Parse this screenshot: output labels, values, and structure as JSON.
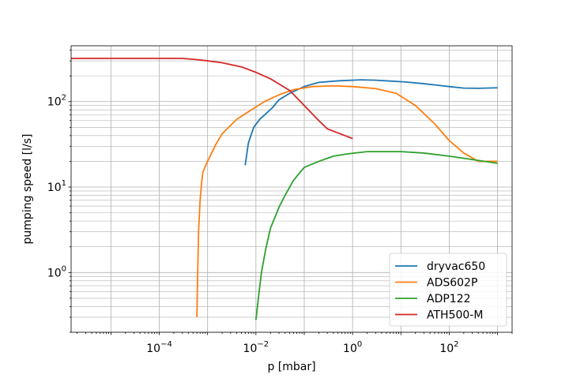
{
  "chart_data": {
    "type": "line",
    "title": "",
    "xlabel": "p [mbar]",
    "ylabel": "pumping speed [l/s]",
    "x_scale": "log",
    "y_scale": "log",
    "xlim": [
      1.5e-06,
      2000
    ],
    "ylim": [
      0.2,
      450
    ],
    "x_ticks": [
      {
        "value": 0.0001,
        "base": "10",
        "exp": "−4"
      },
      {
        "value": 0.01,
        "base": "10",
        "exp": "−2"
      },
      {
        "value": 1,
        "base": "10",
        "exp": "0"
      },
      {
        "value": 100,
        "base": "10",
        "exp": "2"
      }
    ],
    "y_ticks": [
      {
        "value": 1,
        "base": "10",
        "exp": "0"
      },
      {
        "value": 10,
        "base": "10",
        "exp": "1"
      },
      {
        "value": 100,
        "base": "10",
        "exp": "2"
      }
    ],
    "grid": "both major and minor",
    "legend_position": "lower-right",
    "series": [
      {
        "name": "dryvac650",
        "color": "#1f77b4",
        "x": [
          0.006,
          0.007,
          0.009,
          0.012,
          0.016,
          0.022,
          0.03,
          0.05,
          0.1,
          0.2,
          0.5,
          1.5,
          3,
          6,
          12,
          30,
          60,
          100,
          200,
          400,
          1000
        ],
        "y": [
          18,
          33,
          50,
          62,
          72,
          85,
          105,
          125,
          150,
          168,
          175,
          180,
          178,
          174,
          170,
          162,
          155,
          150,
          144,
          143,
          145
        ]
      },
      {
        "name": "ADS602P",
        "color": "#ff7f0e",
        "x": [
          0.0006,
          0.00062,
          0.00065,
          0.0007,
          0.00075,
          0.0008,
          0.001,
          0.0015,
          0.002,
          0.004,
          0.008,
          0.015,
          0.03,
          0.06,
          0.15,
          0.4,
          1,
          3,
          8,
          20,
          50,
          100,
          200,
          400,
          1000
        ],
        "y": [
          0.3,
          0.8,
          3,
          7,
          11,
          15,
          20,
          32,
          42,
          62,
          80,
          100,
          120,
          138,
          150,
          153,
          150,
          142,
          125,
          90,
          55,
          35,
          25,
          20,
          20
        ]
      },
      {
        "name": "ADP122",
        "color": "#2ca02c",
        "x": [
          0.01,
          0.011,
          0.013,
          0.016,
          0.02,
          0.025,
          0.03,
          0.04,
          0.06,
          0.1,
          0.2,
          0.4,
          0.8,
          2,
          5,
          10,
          30,
          100,
          300,
          1000
        ],
        "y": [
          0.28,
          0.45,
          1,
          1.9,
          3.3,
          4.5,
          5.8,
          8,
          12,
          17,
          20,
          23,
          24.5,
          26,
          26,
          26,
          25,
          23,
          21,
          19
        ]
      },
      {
        "name": "ATH500-M",
        "color": "#d62728",
        "x": [
          1e-06,
          1e-05,
          0.0001,
          0.0003,
          0.0006,
          0.001,
          0.002,
          0.005,
          0.01,
          0.02,
          0.05,
          0.1,
          0.2,
          0.3,
          0.5,
          1
        ],
        "y": [
          320,
          320,
          320,
          320,
          310,
          300,
          285,
          255,
          220,
          185,
          135,
          90,
          60,
          48,
          43,
          37
        ]
      }
    ]
  }
}
